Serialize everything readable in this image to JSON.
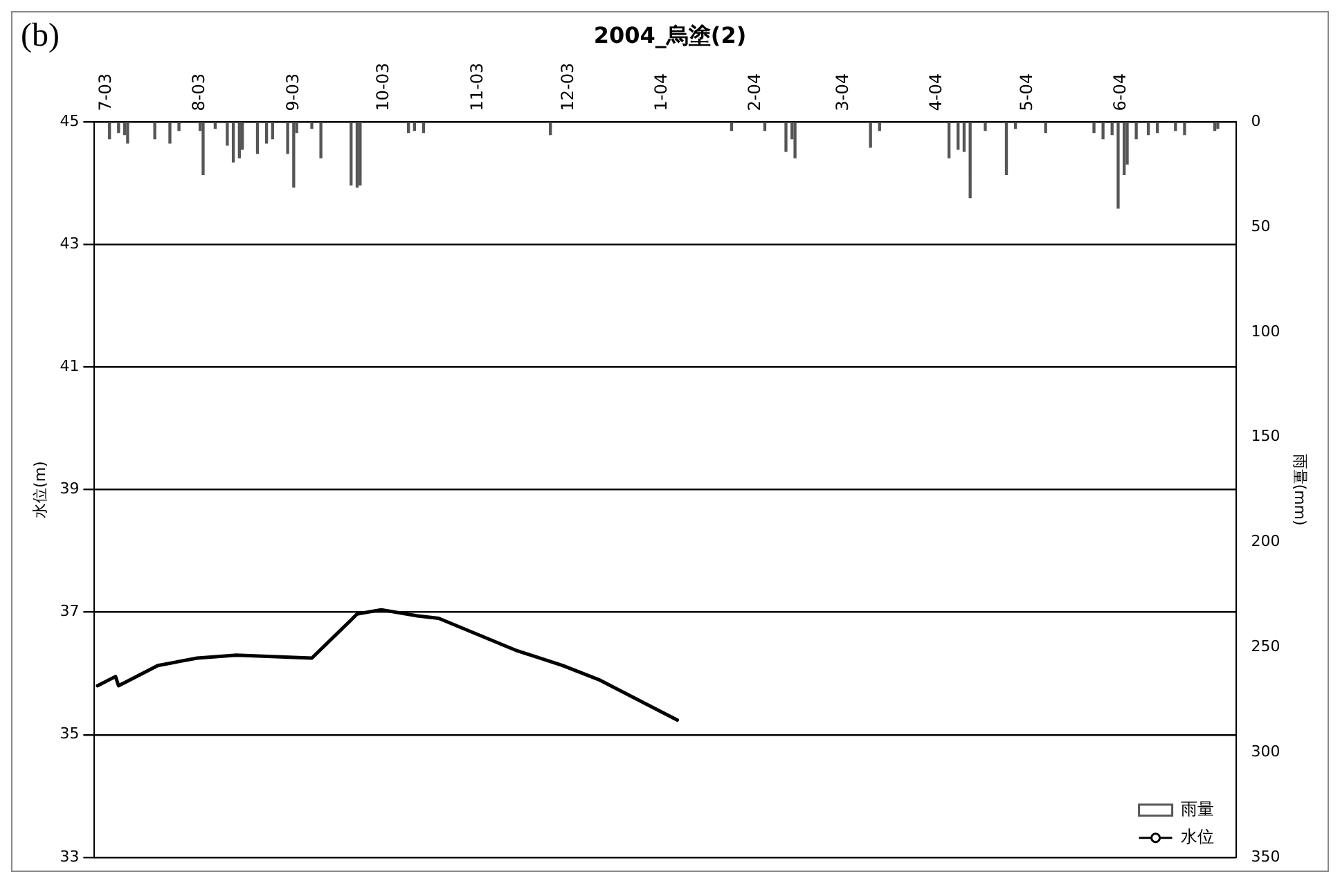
{
  "chart_data": {
    "type": "line",
    "title": "2004_烏塗(2)",
    "ylabel": "水位(m)",
    "y2label": "雨量(mm)",
    "annotations": [
      "(b)"
    ],
    "xlim": [
      "2003-06-27",
      "2004-07-09"
    ],
    "xticks": [
      {
        "value": "2003-07-01",
        "label": "7-03"
      },
      {
        "value": "2003-08-01",
        "label": "8-03"
      },
      {
        "value": "2003-09-01",
        "label": "9-03"
      },
      {
        "value": "2003-10-01",
        "label": "10-03"
      },
      {
        "value": "2003-11-01",
        "label": "11-03"
      },
      {
        "value": "2003-12-01",
        "label": "12-03"
      },
      {
        "value": "2004-01-01",
        "label": "1-04"
      },
      {
        "value": "2004-02-01",
        "label": "2-04"
      },
      {
        "value": "2004-03-01",
        "label": "3-04"
      },
      {
        "value": "2004-04-01",
        "label": "4-04"
      },
      {
        "value": "2004-05-01",
        "label": "5-04"
      },
      {
        "value": "2004-06-01",
        "label": "6-04"
      }
    ],
    "ylim": [
      33,
      45
    ],
    "yticks": [
      33,
      35,
      37,
      39,
      41,
      43,
      45
    ],
    "y2lim": [
      350,
      0
    ],
    "y2ticks": [
      0,
      50,
      100,
      150,
      200,
      250,
      300,
      350
    ],
    "grid": "y",
    "legend": "bottom right",
    "series": [
      {
        "name": "雨量",
        "type": "bar",
        "axis": "y2",
        "color": "#555555",
        "x": [
          "2003-07-02",
          "2003-07-05",
          "2003-07-07",
          "2003-07-08",
          "2003-07-17",
          "2003-07-22",
          "2003-07-25",
          "2003-08-01",
          "2003-08-02",
          "2003-08-06",
          "2003-08-10",
          "2003-08-12",
          "2003-08-14",
          "2003-08-15",
          "2003-08-20",
          "2003-08-23",
          "2003-08-25",
          "2003-08-30",
          "2003-09-01",
          "2003-09-02",
          "2003-09-07",
          "2003-09-10",
          "2003-09-20",
          "2003-09-22",
          "2003-09-23",
          "2003-10-09",
          "2003-10-11",
          "2003-10-14",
          "2003-11-25",
          "2004-01-24",
          "2004-02-04",
          "2004-02-11",
          "2004-02-13",
          "2004-02-14",
          "2004-03-10",
          "2004-03-13",
          "2004-04-05",
          "2004-04-08",
          "2004-04-10",
          "2004-04-12",
          "2004-04-17",
          "2004-04-24",
          "2004-04-27",
          "2004-05-07",
          "2004-05-23",
          "2004-05-26",
          "2004-05-29",
          "2004-05-31",
          "2004-06-02",
          "2004-06-03",
          "2004-06-06",
          "2004-06-10",
          "2004-06-13",
          "2004-06-19",
          "2004-06-22",
          "2004-07-02",
          "2004-07-03"
        ],
        "values": [
          8,
          5,
          6,
          10,
          8,
          10,
          4,
          4,
          25,
          3,
          11,
          19,
          17,
          13,
          15,
          10,
          8,
          15,
          31,
          5,
          3,
          17,
          30,
          31,
          30,
          5,
          4,
          5,
          6,
          4,
          4,
          14,
          8,
          17,
          12,
          4,
          17,
          13,
          14,
          36,
          4,
          25,
          3,
          5,
          5,
          8,
          6,
          41,
          25,
          20,
          8,
          6,
          5,
          4,
          6,
          4,
          3
        ]
      },
      {
        "name": "水位",
        "color": "#000000",
        "x": [
          "2003-06-28",
          "2003-07-04",
          "2003-07-05",
          "2003-07-18",
          "2003-07-31",
          "2003-08-13",
          "2003-09-07",
          "2003-09-22",
          "2003-09-30",
          "2003-10-12",
          "2003-10-19",
          "2003-11-14",
          "2003-11-29",
          "2003-12-11",
          "2004-01-06"
        ],
        "values": [
          35.8,
          35.95,
          35.8,
          36.13,
          36.25,
          36.3,
          36.25,
          36.97,
          37.04,
          36.94,
          36.9,
          36.37,
          36.13,
          35.9,
          35.24
        ]
      }
    ]
  }
}
